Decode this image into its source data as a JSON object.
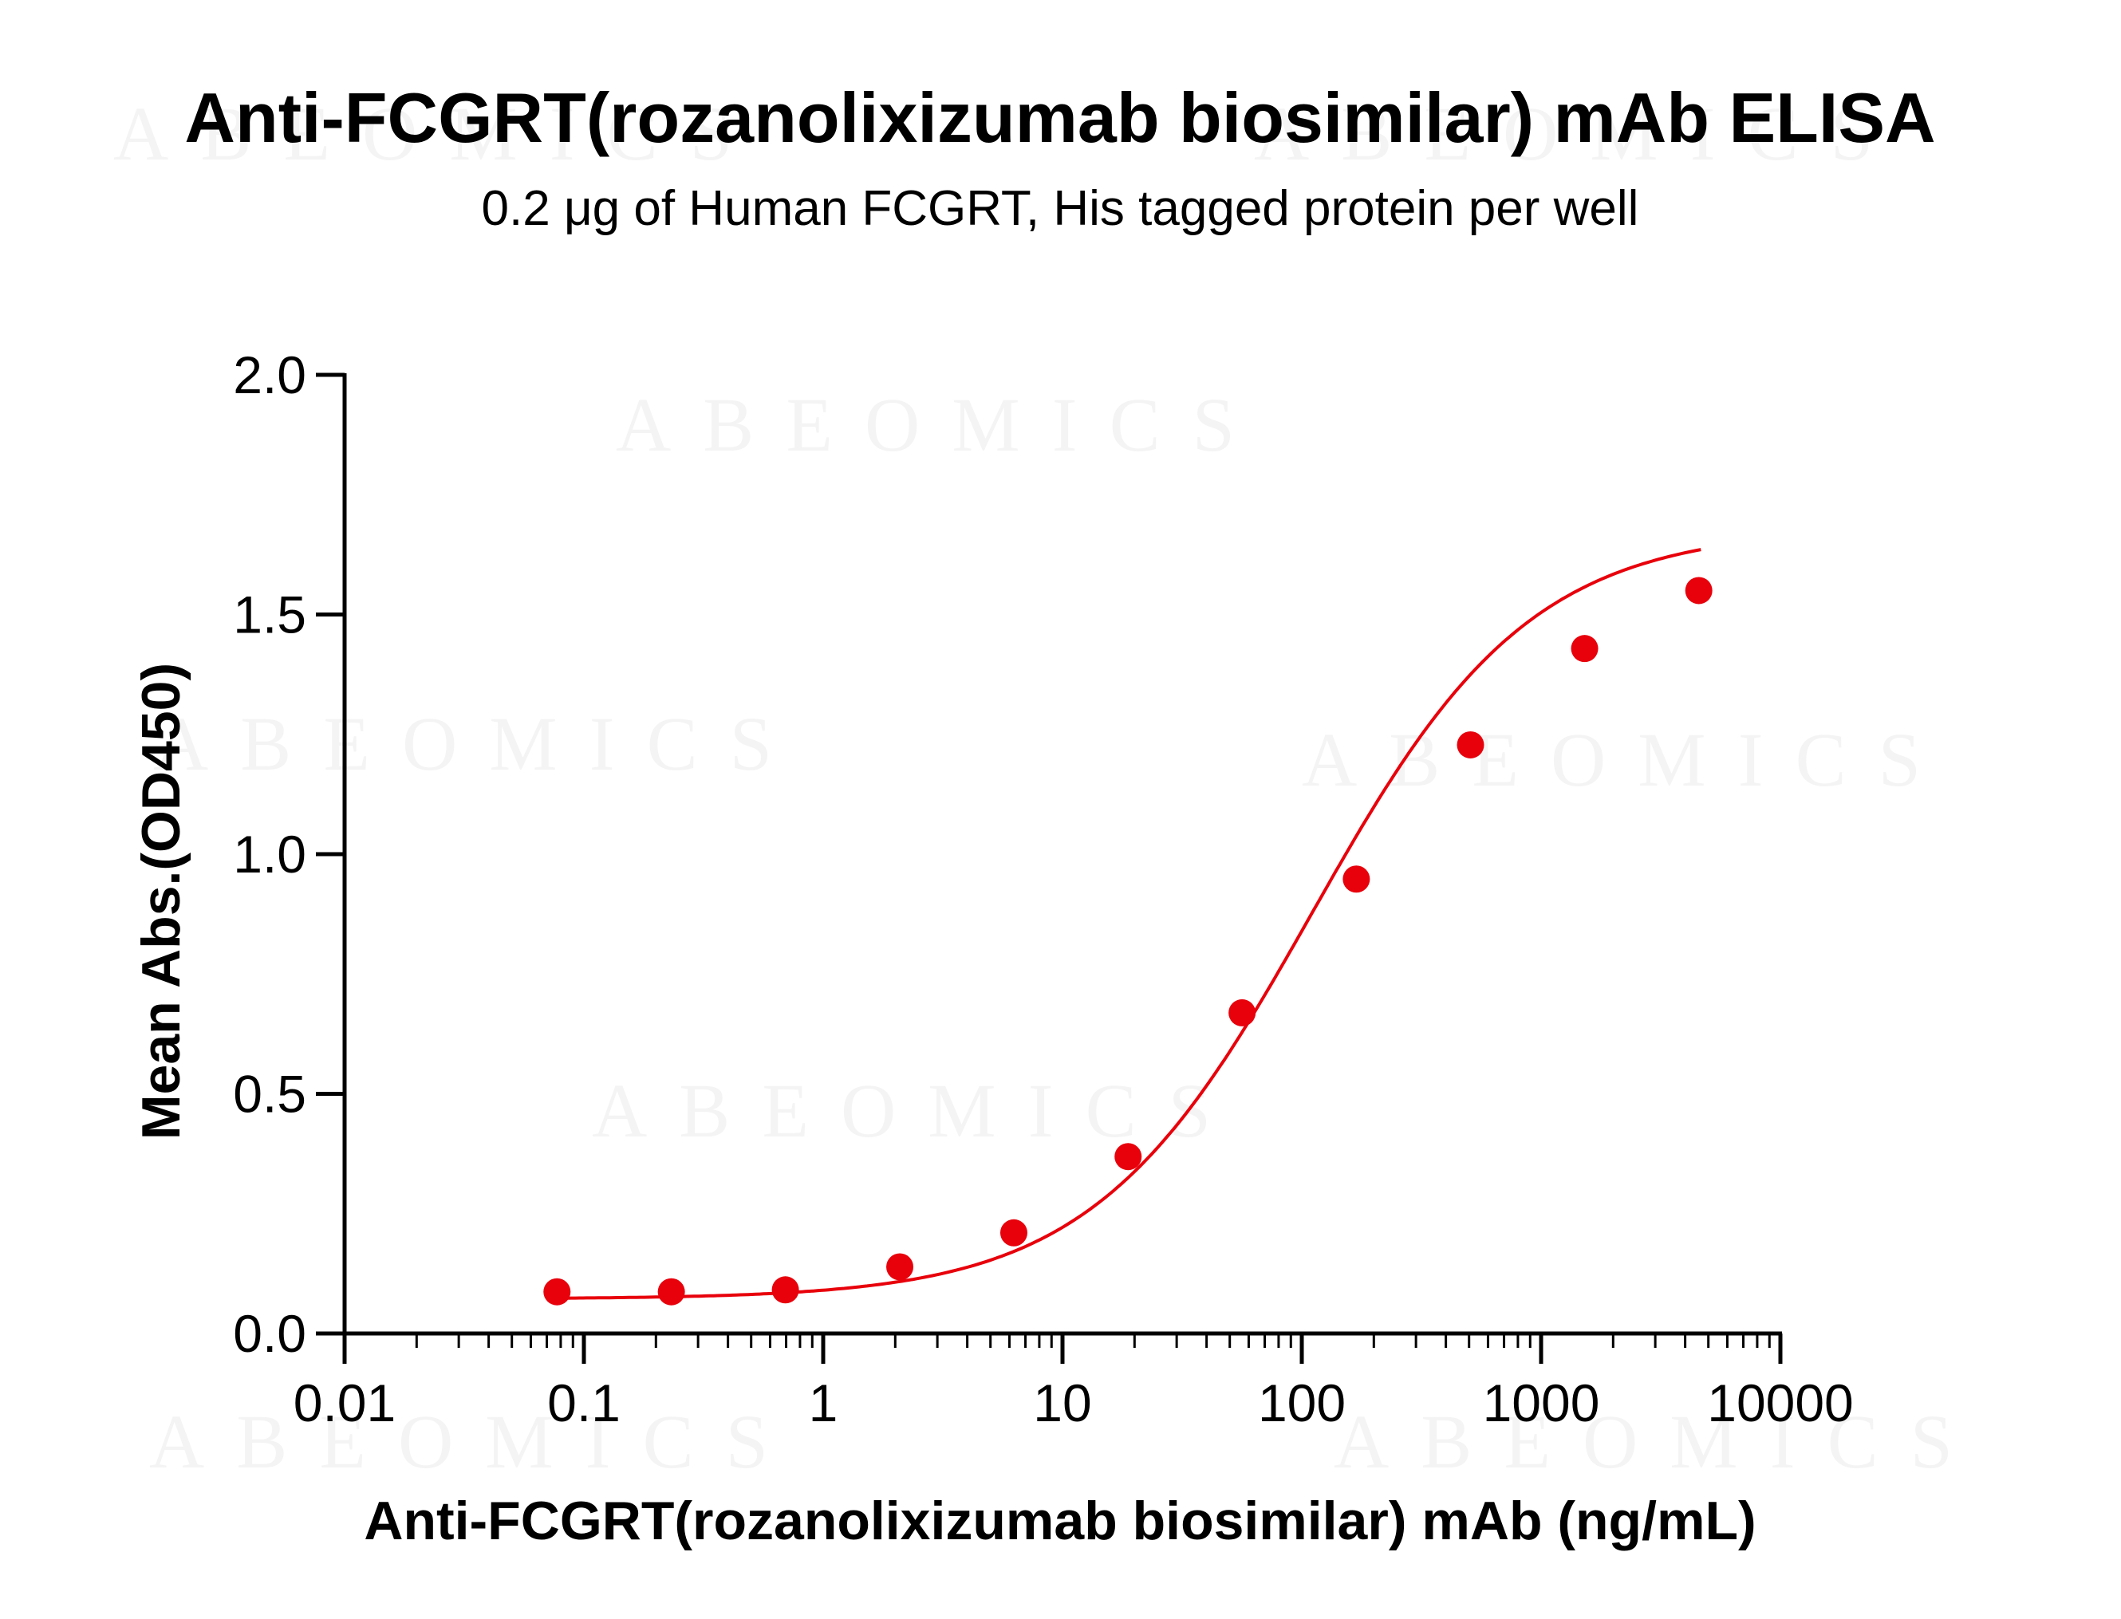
{
  "colors": {
    "series": "#e8000b",
    "axis": "#000000",
    "background": "#ffffff"
  },
  "watermark": "ABEOMICS",
  "chart_data": {
    "type": "scatter",
    "title": "Anti-FCGRT(rozanolixizumab biosimilar) mAb ELISA",
    "subtitle": "0.2 μg of Human FCGRT, His tagged protein per well",
    "xlabel": "Anti-FCGRT(rozanolixizumab biosimilar) mAb (ng/mL)",
    "ylabel": "Mean Abs.(OD450)",
    "x_scale": "log",
    "xlim": [
      0.01,
      10000
    ],
    "ylim": [
      0,
      2.0
    ],
    "x_ticks": [
      0.01,
      0.1,
      1,
      10,
      100,
      1000,
      10000
    ],
    "x_tick_labels": [
      "0.01",
      "0.1",
      "1",
      "10",
      "100",
      "1000",
      "10000"
    ],
    "y_ticks": [
      0,
      0.5,
      1.0,
      1.5,
      2.0
    ],
    "y_tick_labels": [
      "0.0",
      "0.5",
      "1.0",
      "1.5",
      "2.0"
    ],
    "grid": false,
    "legend": "none",
    "fit": "4-parameter logistic curve",
    "series": [
      {
        "x": [
          0.0772,
          0.232,
          0.695,
          2.09,
          6.26,
          18.8,
          56.3,
          169,
          507,
          1520,
          4560
        ],
        "y": [
          0.087,
          0.087,
          0.091,
          0.139,
          0.21,
          0.369,
          0.669,
          0.948,
          1.228,
          1.429,
          1.55
        ]
      }
    ]
  }
}
